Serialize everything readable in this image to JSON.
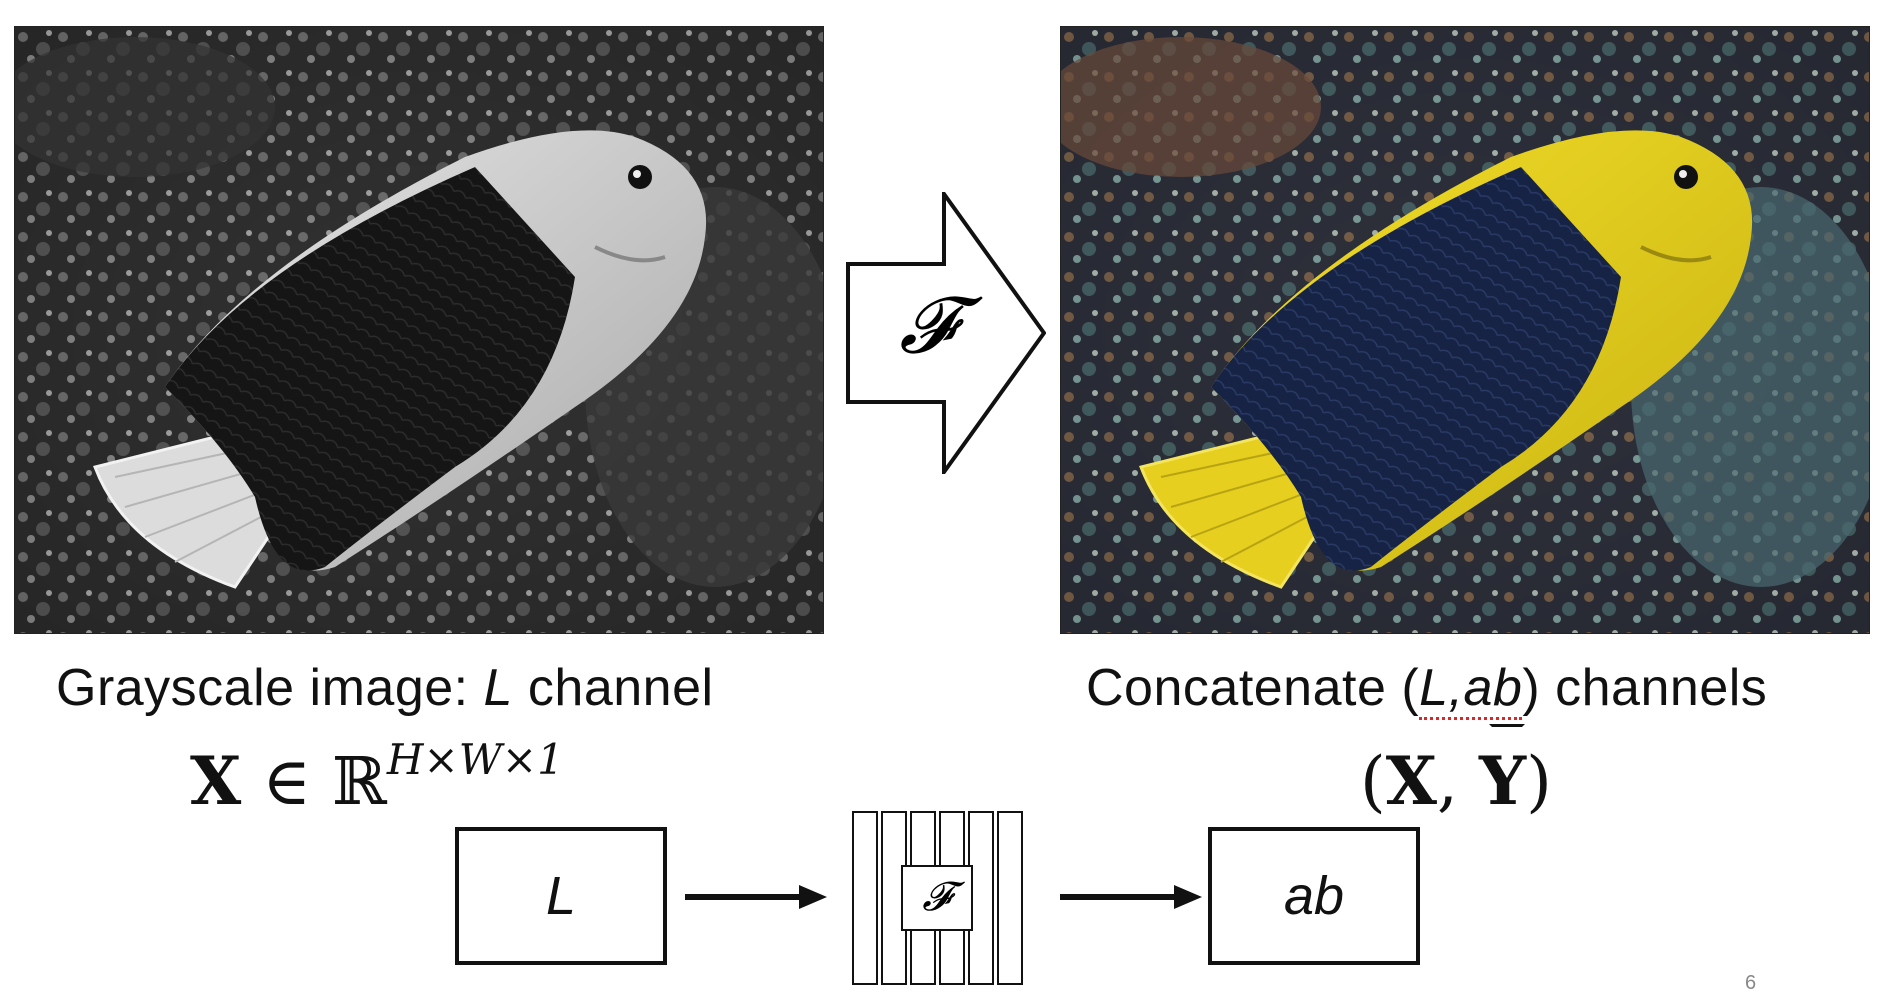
{
  "left_panel": {
    "image_desc_icon": "grayscale-fish-photo",
    "caption_prefix": "Grayscale image: ",
    "caption_italic": "L",
    "caption_suffix": " channel",
    "math_bold": "X",
    "math_in": " ∈ ℝ",
    "math_sup": "H×W×1"
  },
  "right_panel": {
    "image_desc_icon": "colorized-fish-photo",
    "caption_prefix": "Concatenate (",
    "caption_italic": "L,ab",
    "caption_suffix": ") channels",
    "math_open": "(",
    "math_x": "X",
    "math_comma": ", ",
    "math_y": "Y",
    "math_close": ")"
  },
  "mapping_arrow": {
    "label": "𝓕"
  },
  "pipeline": {
    "input_label": "L",
    "network_label": "𝓕",
    "output_label": "ab"
  },
  "page_number": "6",
  "colors": {
    "fish_yellow": "#e8d21a",
    "fish_blue": "#1a2a55",
    "stroke": "#111111"
  }
}
